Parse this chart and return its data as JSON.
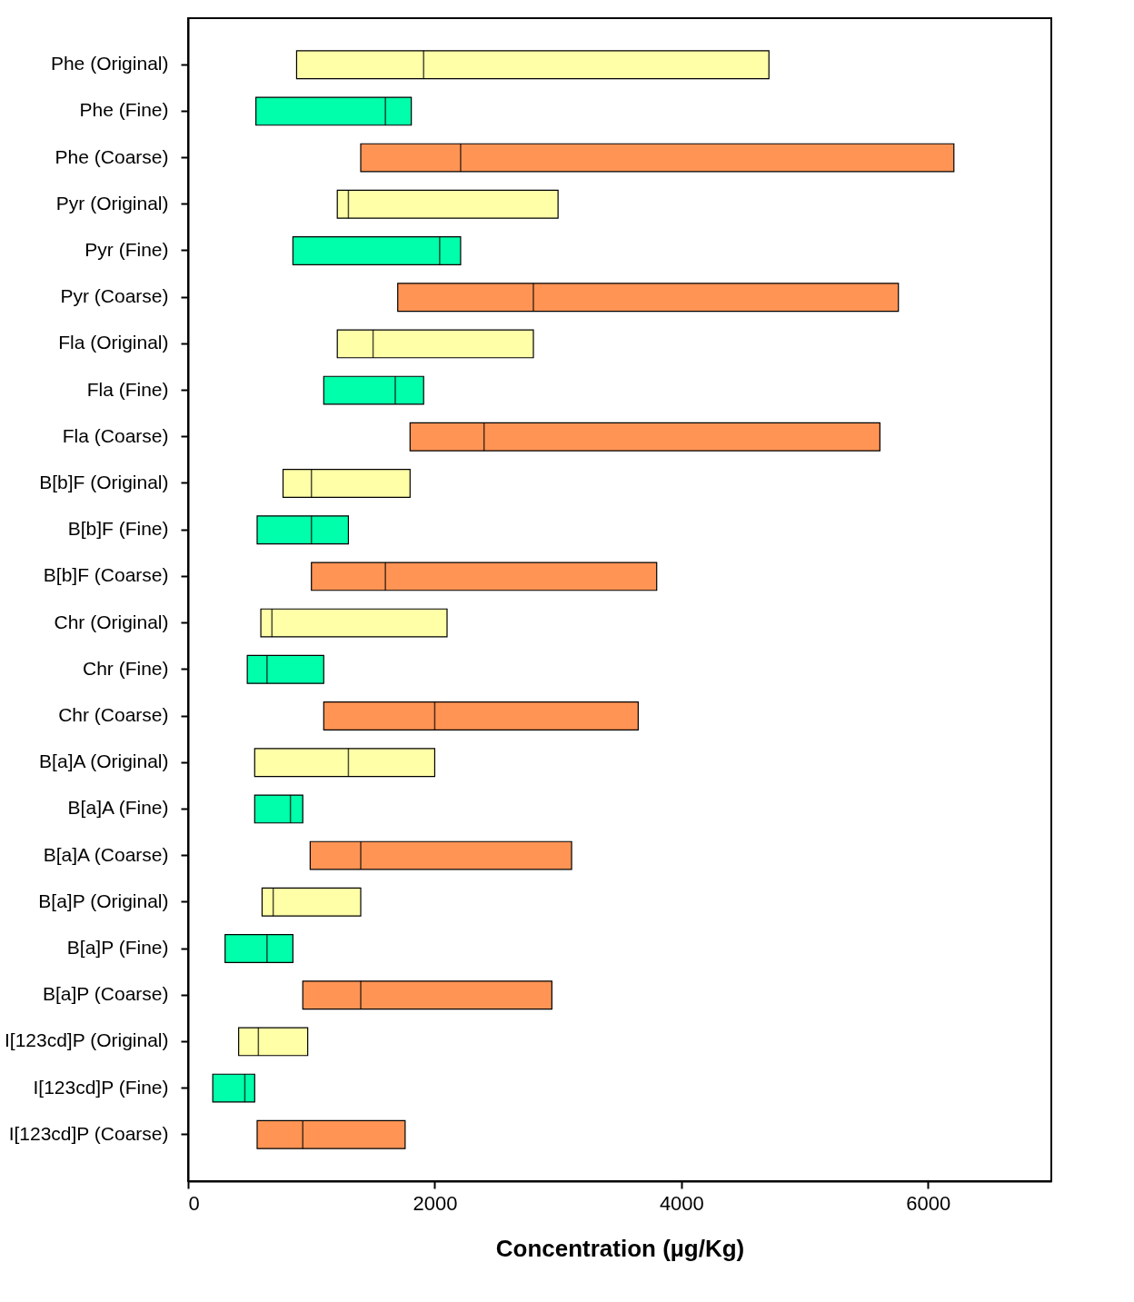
{
  "chart_data": {
    "type": "box",
    "orientation": "horizontal",
    "xlabel": "Concentration (µg/Kg)",
    "xlim": [
      0,
      7000
    ],
    "xticks": [
      0,
      2000,
      4000,
      6000
    ],
    "grid": false,
    "categories": [
      "Phe (Original)",
      "Phe (Fine)",
      "Phe (Coarse)",
      "Pyr (Original)",
      "Pyr (Fine)",
      "Pyr (Coarse)",
      "Fla (Original)",
      "Fla (Fine)",
      "Fla (Coarse)",
      "B[b]F (Original)",
      "B[b]F (Fine)",
      "B[b]F (Coarse)",
      "Chr (Original)",
      "Chr (Fine)",
      "Chr (Coarse)",
      "B[a]A (Original)",
      "B[a]A (Fine)",
      "B[a]A (Coarse)",
      "B[a]P (Original)",
      "B[a]P (Fine)",
      "B[a]P (Coarse)",
      "I[123cd]P (Original)",
      "I[123cd]P (Fine)",
      "I[123cd]P (Coarse)"
    ],
    "colors": [
      "#ffffa8",
      "#00ffaa",
      "#ff9455",
      "#ffffa8",
      "#00ffaa",
      "#ff9455",
      "#ffffa8",
      "#00ffaa",
      "#ff9455",
      "#ffffa8",
      "#00ffaa",
      "#ff9455",
      "#ffffa8",
      "#00ffaa",
      "#ff9455",
      "#ffffa8",
      "#00ffaa",
      "#ff9455",
      "#ffffa8",
      "#00ffaa",
      "#ff9455",
      "#ffffa8",
      "#00ffaa",
      "#ff9455"
    ],
    "boxes": [
      {
        "low": 880,
        "q1": 880,
        "median": 1910,
        "q3": 4710,
        "high": 4710
      },
      {
        "low": 550,
        "q1": 550,
        "median": 1600,
        "q3": 1810,
        "high": 1810
      },
      {
        "low": 1400,
        "q1": 1400,
        "median": 2210,
        "q3": 6210,
        "high": 6210
      },
      {
        "low": 1210,
        "q1": 1210,
        "median": 1300,
        "q3": 3000,
        "high": 3000
      },
      {
        "low": 850,
        "q1": 850,
        "median": 2040,
        "q3": 2210,
        "high": 2210
      },
      {
        "low": 1700,
        "q1": 1700,
        "median": 2800,
        "q3": 5760,
        "high": 5760
      },
      {
        "low": 1210,
        "q1": 1210,
        "median": 1500,
        "q3": 2800,
        "high": 2800
      },
      {
        "low": 1100,
        "q1": 1100,
        "median": 1680,
        "q3": 1910,
        "high": 1910
      },
      {
        "low": 1800,
        "q1": 1800,
        "median": 2400,
        "q3": 5610,
        "high": 5610
      },
      {
        "low": 770,
        "q1": 770,
        "median": 1000,
        "q3": 1800,
        "high": 1800
      },
      {
        "low": 560,
        "q1": 560,
        "median": 1000,
        "q3": 1300,
        "high": 1300
      },
      {
        "low": 1000,
        "q1": 1000,
        "median": 1600,
        "q3": 3800,
        "high": 3800
      },
      {
        "low": 590,
        "q1": 590,
        "median": 680,
        "q3": 2100,
        "high": 2100
      },
      {
        "low": 480,
        "q1": 480,
        "median": 640,
        "q3": 1100,
        "high": 1100
      },
      {
        "low": 1100,
        "q1": 1100,
        "median": 2000,
        "q3": 3650,
        "high": 3650
      },
      {
        "low": 540,
        "q1": 540,
        "median": 1300,
        "q3": 2000,
        "high": 2000
      },
      {
        "low": 540,
        "q1": 540,
        "median": 830,
        "q3": 930,
        "high": 930
      },
      {
        "low": 990,
        "q1": 990,
        "median": 1400,
        "q3": 3110,
        "high": 3110
      },
      {
        "low": 600,
        "q1": 600,
        "median": 690,
        "q3": 1400,
        "high": 1400
      },
      {
        "low": 300,
        "q1": 300,
        "median": 640,
        "q3": 850,
        "high": 850
      },
      {
        "low": 930,
        "q1": 930,
        "median": 1400,
        "q3": 2950,
        "high": 2950
      },
      {
        "low": 410,
        "q1": 410,
        "median": 570,
        "q3": 970,
        "high": 970
      },
      {
        "low": 200,
        "q1": 200,
        "median": 460,
        "q3": 540,
        "high": 540
      },
      {
        "low": 560,
        "q1": 560,
        "median": 930,
        "q3": 1760,
        "high": 1760
      }
    ]
  }
}
